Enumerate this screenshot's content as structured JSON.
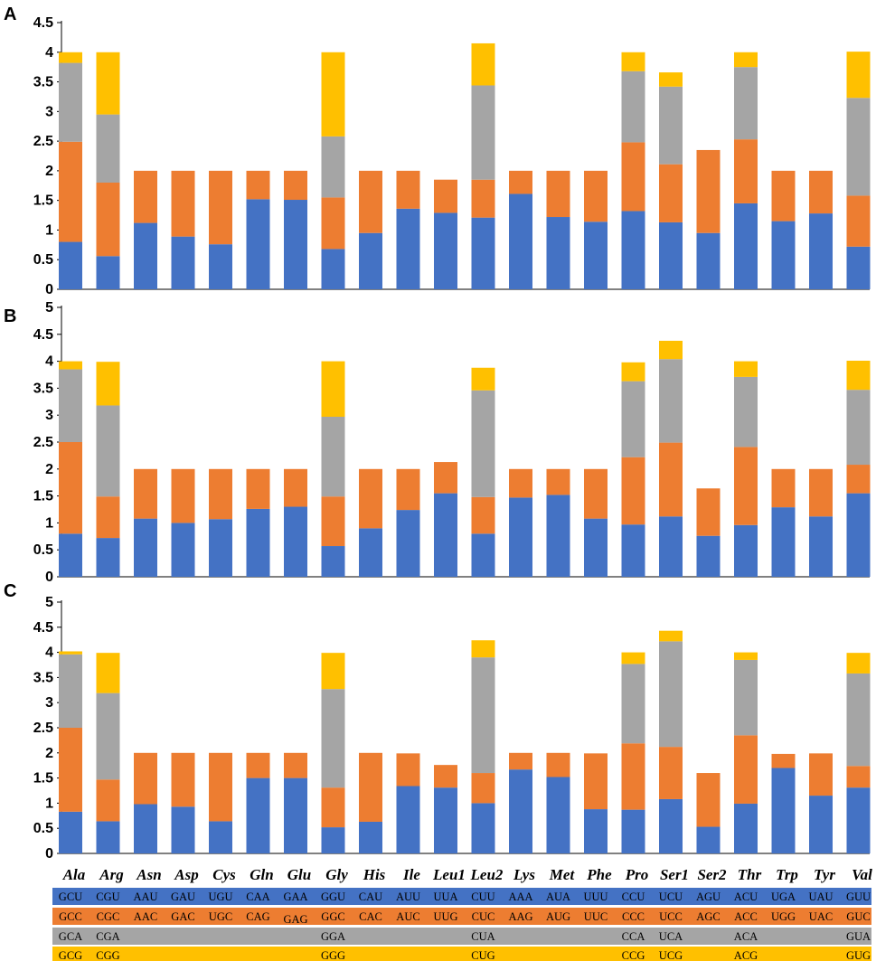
{
  "colors": {
    "blue": "#4472c4",
    "orange": "#ed7d31",
    "gray": "#a5a5a5",
    "yellow": "#ffc000",
    "axis": "#000000"
  },
  "chart_data": [
    {
      "type": "bar",
      "stacked": true,
      "panel_label": "A",
      "categories": [
        "Ala",
        "Arg",
        "Asn",
        "Asp",
        "Cys",
        "Gln",
        "Glu",
        "Gly",
        "His",
        "Ile",
        "Leu1",
        "Leu2",
        "Lys",
        "Met",
        "Phe",
        "Pro",
        "Ser1",
        "Ser2",
        "Thr",
        "Trp",
        "Tyr",
        "Val"
      ],
      "ylim": [
        0,
        4.5
      ],
      "yticks": [
        "0",
        "0.5",
        "1",
        "1.5",
        "2",
        "2.5",
        "3",
        "3.5",
        "4",
        "4.5"
      ],
      "ytick_values": [
        0,
        0.5,
        1,
        1.5,
        2,
        2.5,
        3,
        3.5,
        4,
        4.5
      ],
      "grid": false,
      "series": [
        {
          "values": [
            0.8,
            0.56,
            1.12,
            0.89,
            0.76,
            1.52,
            1.51,
            0.68,
            0.95,
            1.36,
            1.29,
            1.21,
            1.61,
            1.22,
            1.14,
            1.32,
            1.13,
            0.95,
            1.45,
            1.15,
            1.28,
            0.72
          ]
        },
        {
          "values": [
            1.69,
            1.24,
            0.88,
            1.11,
            1.24,
            0.48,
            0.49,
            0.87,
            1.05,
            0.64,
            0.56,
            0.64,
            0.39,
            0.78,
            0.86,
            1.16,
            0.98,
            1.4,
            1.08,
            0.85,
            0.72,
            0.86
          ]
        },
        {
          "values": [
            1.33,
            1.15,
            0,
            0,
            0,
            0,
            0,
            1.03,
            0,
            0,
            0,
            1.59,
            0,
            0,
            0,
            1.2,
            1.31,
            0,
            1.22,
            0,
            0,
            1.65
          ]
        },
        {
          "values": [
            0.18,
            1.05,
            0,
            0,
            0,
            0,
            0,
            1.42,
            0,
            0,
            0,
            0.71,
            0,
            0,
            0,
            0.32,
            0.24,
            0,
            0.25,
            0,
            0,
            0.78
          ]
        }
      ]
    },
    {
      "type": "bar",
      "stacked": true,
      "panel_label": "B",
      "categories": [
        "Ala",
        "Arg",
        "Asn",
        "Asp",
        "Cys",
        "Gln",
        "Glu",
        "Gly",
        "His",
        "Ile",
        "Leu1",
        "Leu2",
        "Lys",
        "Met",
        "Phe",
        "Pro",
        "Ser1",
        "Ser2",
        "Thr",
        "Trp",
        "Tyr",
        "Val"
      ],
      "ylim": [
        0,
        5
      ],
      "yticks": [
        "0",
        "0.5",
        "1",
        "1.5",
        "2",
        "2.5",
        "3",
        "3.5",
        "4",
        "4.5",
        "5"
      ],
      "ytick_values": [
        0,
        0.5,
        1,
        1.5,
        2,
        2.5,
        3,
        3.5,
        4,
        4.5,
        5
      ],
      "grid": false,
      "series": [
        {
          "values": [
            0.8,
            0.72,
            1.08,
            1.0,
            1.07,
            1.26,
            1.3,
            0.57,
            0.9,
            1.24,
            1.55,
            0.8,
            1.47,
            1.52,
            1.08,
            0.97,
            1.12,
            0.76,
            0.96,
            1.29,
            1.12,
            1.55
          ]
        },
        {
          "values": [
            1.7,
            0.77,
            0.92,
            1.0,
            0.93,
            0.74,
            0.7,
            0.92,
            1.1,
            0.76,
            0.58,
            0.68,
            0.53,
            0.48,
            0.92,
            1.25,
            1.37,
            0.88,
            1.45,
            0.71,
            0.88,
            0.53
          ]
        },
        {
          "values": [
            1.35,
            1.69,
            0,
            0,
            0,
            0,
            0,
            1.48,
            0,
            0,
            0,
            1.98,
            0,
            0,
            0,
            1.41,
            1.55,
            0,
            1.3,
            0,
            0,
            1.39
          ]
        },
        {
          "values": [
            0.15,
            0.81,
            0,
            0,
            0,
            0,
            0,
            1.03,
            0,
            0,
            0,
            0.42,
            0,
            0,
            0,
            0.35,
            0.34,
            0,
            0.29,
            0,
            0,
            0.54
          ]
        }
      ]
    },
    {
      "type": "bar",
      "stacked": true,
      "panel_label": "C",
      "categories": [
        "Ala",
        "Arg",
        "Asn",
        "Asp",
        "Cys",
        "Gln",
        "Glu",
        "Gly",
        "His",
        "Ile",
        "Leu1",
        "Leu2",
        "Lys",
        "Met",
        "Phe",
        "Pro",
        "Ser1",
        "Ser2",
        "Thr",
        "Trp",
        "Tyr",
        "Val"
      ],
      "ylim": [
        0,
        5
      ],
      "yticks": [
        "0",
        "0.5",
        "1",
        "1.5",
        "2",
        "2.5",
        "3",
        "3.5",
        "4",
        "4.5",
        "5"
      ],
      "ytick_values": [
        0,
        0.5,
        1,
        1.5,
        2,
        2.5,
        3,
        3.5,
        4,
        4.5,
        5
      ],
      "grid": false,
      "series": [
        {
          "values": [
            0.83,
            0.64,
            0.98,
            0.93,
            0.64,
            1.5,
            1.5,
            0.52,
            0.63,
            1.34,
            1.31,
            1.0,
            1.67,
            1.52,
            0.88,
            0.87,
            1.08,
            0.53,
            0.99,
            1.7,
            1.15,
            1.31
          ]
        },
        {
          "values": [
            1.67,
            0.83,
            1.02,
            1.07,
            1.36,
            0.5,
            0.5,
            0.79,
            1.37,
            0.65,
            0.45,
            0.6,
            0.33,
            0.48,
            1.11,
            1.32,
            1.04,
            1.07,
            1.36,
            0.28,
            0.84,
            0.43
          ]
        },
        {
          "values": [
            1.46,
            1.72,
            0,
            0,
            0,
            0,
            0,
            1.96,
            0,
            0,
            0,
            2.3,
            0,
            0,
            0,
            1.58,
            2.1,
            0,
            1.5,
            0,
            0,
            1.84
          ]
        },
        {
          "values": [
            0.06,
            0.8,
            0,
            0,
            0,
            0,
            0,
            0.72,
            0,
            0,
            0,
            0.34,
            0,
            0,
            0,
            0.23,
            0.21,
            0,
            0.15,
            0,
            0,
            0.41
          ]
        }
      ]
    }
  ],
  "codon_table": {
    "amino_acids": [
      "Ala",
      "Arg",
      "Asn",
      "Asp",
      "Cys",
      "Gln",
      "Glu",
      "Gly",
      "His",
      "Ile",
      "Leu1",
      "Leu2",
      "Lys",
      "Met",
      "Phe",
      "Pro",
      "Ser1",
      "Ser2",
      "Thr",
      "Trp",
      "Tyr",
      "Val"
    ],
    "rows": [
      {
        "color": "#4472c4",
        "cells": [
          "GCU",
          "CGU",
          "AAU",
          "GAU",
          "UGU",
          "CAA",
          "GAA",
          "GGU",
          "CAU",
          "AUU",
          "UUA",
          "CUU",
          "AAA",
          "AUA",
          "UUU",
          "CCU",
          "UCU",
          "AGU",
          "ACU",
          "UGA",
          "UAU",
          "GUU"
        ]
      },
      {
        "color": "#ed7d31",
        "cells": [
          "GCC",
          "CGC",
          "AAC",
          "GAC",
          "UGC",
          "CAG",
          "GAG",
          "GGC",
          "CAC",
          "AUC",
          "UUG",
          "CUC",
          "AAG",
          "AUG",
          "UUC",
          "CCC",
          "UCC",
          "AGC",
          "ACC",
          "UGG",
          "UAC",
          "GUC"
        ]
      },
      {
        "color": "#a5a5a5",
        "cells": [
          "GCA",
          "CGA",
          "",
          "",
          "",
          "",
          "",
          "GGA",
          "",
          "",
          "",
          "CUA",
          "",
          "",
          "",
          "CCA",
          "UCA",
          "",
          "ACA",
          "",
          "",
          "GUA"
        ]
      },
      {
        "color": "#ffc000",
        "cells": [
          "GCG",
          "CGG",
          "",
          "",
          "",
          "",
          "",
          "GGG",
          "",
          "",
          "",
          "CUG",
          "",
          "",
          "",
          "CCG",
          "UCG",
          "",
          "ACG",
          "",
          "",
          "GUG"
        ]
      }
    ]
  }
}
